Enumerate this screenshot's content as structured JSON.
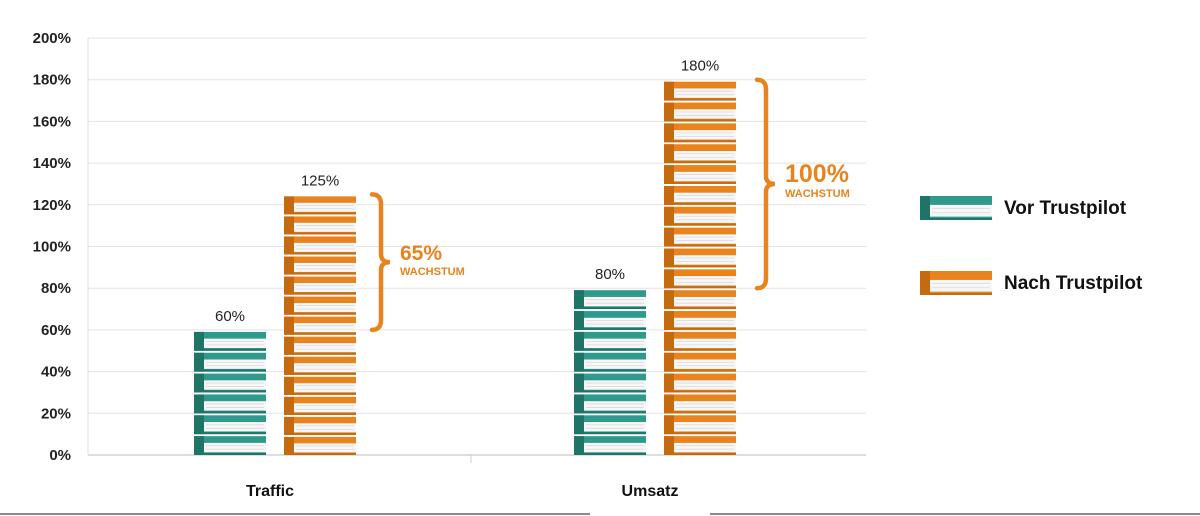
{
  "chart_data": {
    "type": "bar",
    "categories": [
      "Traffic",
      "Umsatz"
    ],
    "series": [
      {
        "name": "Vor Trustpilot",
        "values": [
          60,
          80
        ],
        "color": "#2E9A8C"
      },
      {
        "name": "Nach Trustpilot",
        "values": [
          125,
          180
        ],
        "color": "#E8831E"
      }
    ],
    "value_labels": [
      [
        "60%",
        "80%"
      ],
      [
        "125%",
        "180%"
      ]
    ],
    "growth": [
      {
        "percent": "65%",
        "word": "WACHSTUM"
      },
      {
        "percent": "100%",
        "word": "WACHSTUM"
      }
    ],
    "ylim": [
      0,
      200
    ],
    "yticks": [
      "0%",
      "20%",
      "40%",
      "60%",
      "80%",
      "100%",
      "120%",
      "140%",
      "160%",
      "180%",
      "200%"
    ],
    "grid": true,
    "legend": "right",
    "mark_style": "stacked books"
  }
}
